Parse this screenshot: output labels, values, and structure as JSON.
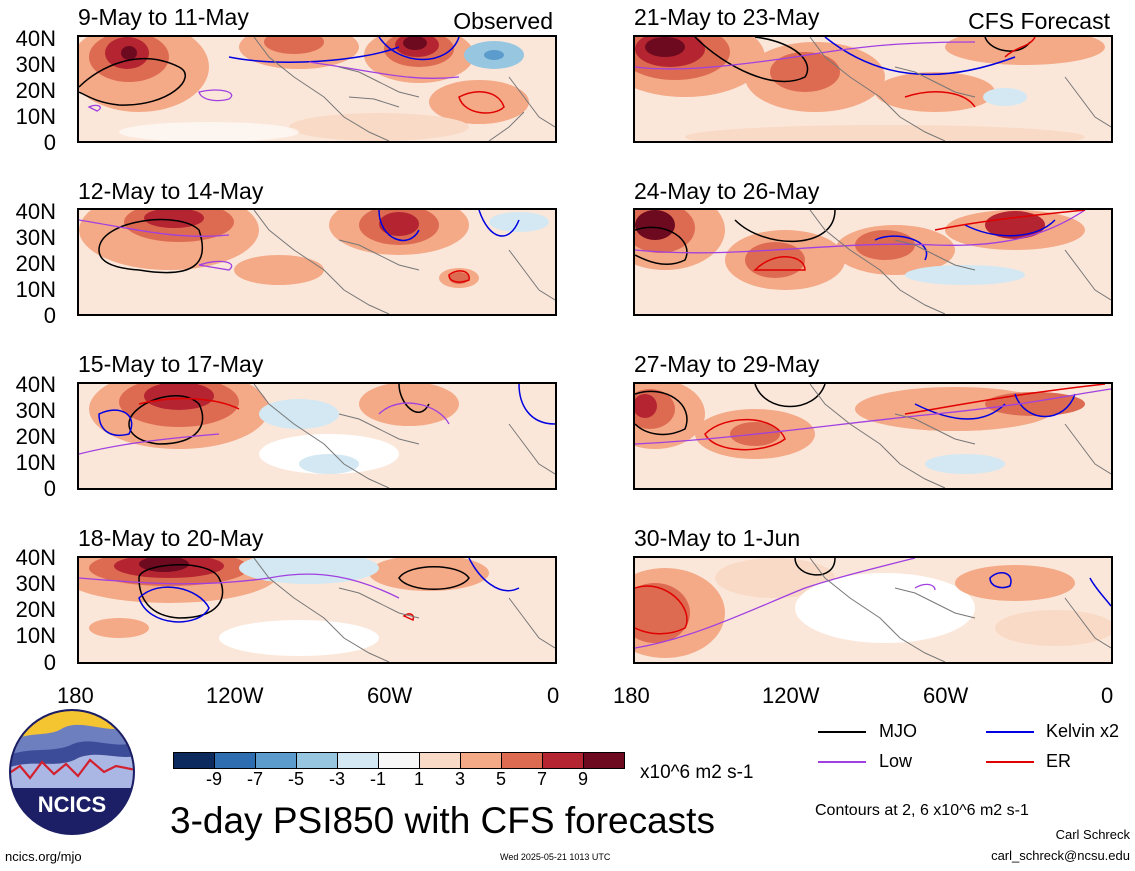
{
  "panels": [
    {
      "title": "9-May to 11-May",
      "label": "Observed"
    },
    {
      "title": "21-May to 23-May",
      "label": "CFS Forecast"
    },
    {
      "title": "12-May to 14-May",
      "label": ""
    },
    {
      "title": "24-May to 26-May",
      "label": ""
    },
    {
      "title": "15-May to 17-May",
      "label": ""
    },
    {
      "title": "27-May to 29-May",
      "label": ""
    },
    {
      "title": "18-May to 20-May",
      "label": ""
    },
    {
      "title": "30-May to 1-Jun",
      "label": ""
    }
  ],
  "lat_labels": [
    "40N",
    "30N",
    "20N",
    "10N",
    "0"
  ],
  "lon_labels": [
    "180",
    "120W",
    "60W",
    "0"
  ],
  "colorbar": {
    "colors": [
      "#0d2a5e",
      "#2d6db0",
      "#5c9ccc",
      "#96c6e0",
      "#d3e8f2",
      "#f7f7f7",
      "#f9dac6",
      "#f4a987",
      "#dd6b52",
      "#b52431",
      "#6e0a1f"
    ],
    "labels": [
      "-9",
      "-7",
      "-5",
      "-3",
      "-1",
      "1",
      "3",
      "5",
      "7",
      "9"
    ],
    "unit": "x10^6 m2 s-1"
  },
  "legend": [
    {
      "name": "MJO",
      "color": "#000000"
    },
    {
      "name": "Kelvin x2",
      "color": "#0000e0"
    },
    {
      "name": "Low",
      "color": "#a040e0"
    },
    {
      "name": "ER",
      "color": "#e00000"
    }
  ],
  "contour_note": "Contours at 2, 6 x10^6 m2 s-1",
  "main_title": "3-day PSI850 with CFS forecasts",
  "logo_text": "NCICS",
  "site_url": "ncics.org/mjo",
  "timestamp": "Wed 2025-05-21 1013 UTC",
  "author": "Carl Schreck",
  "email": "carl_schreck@ncsu.edu"
}
